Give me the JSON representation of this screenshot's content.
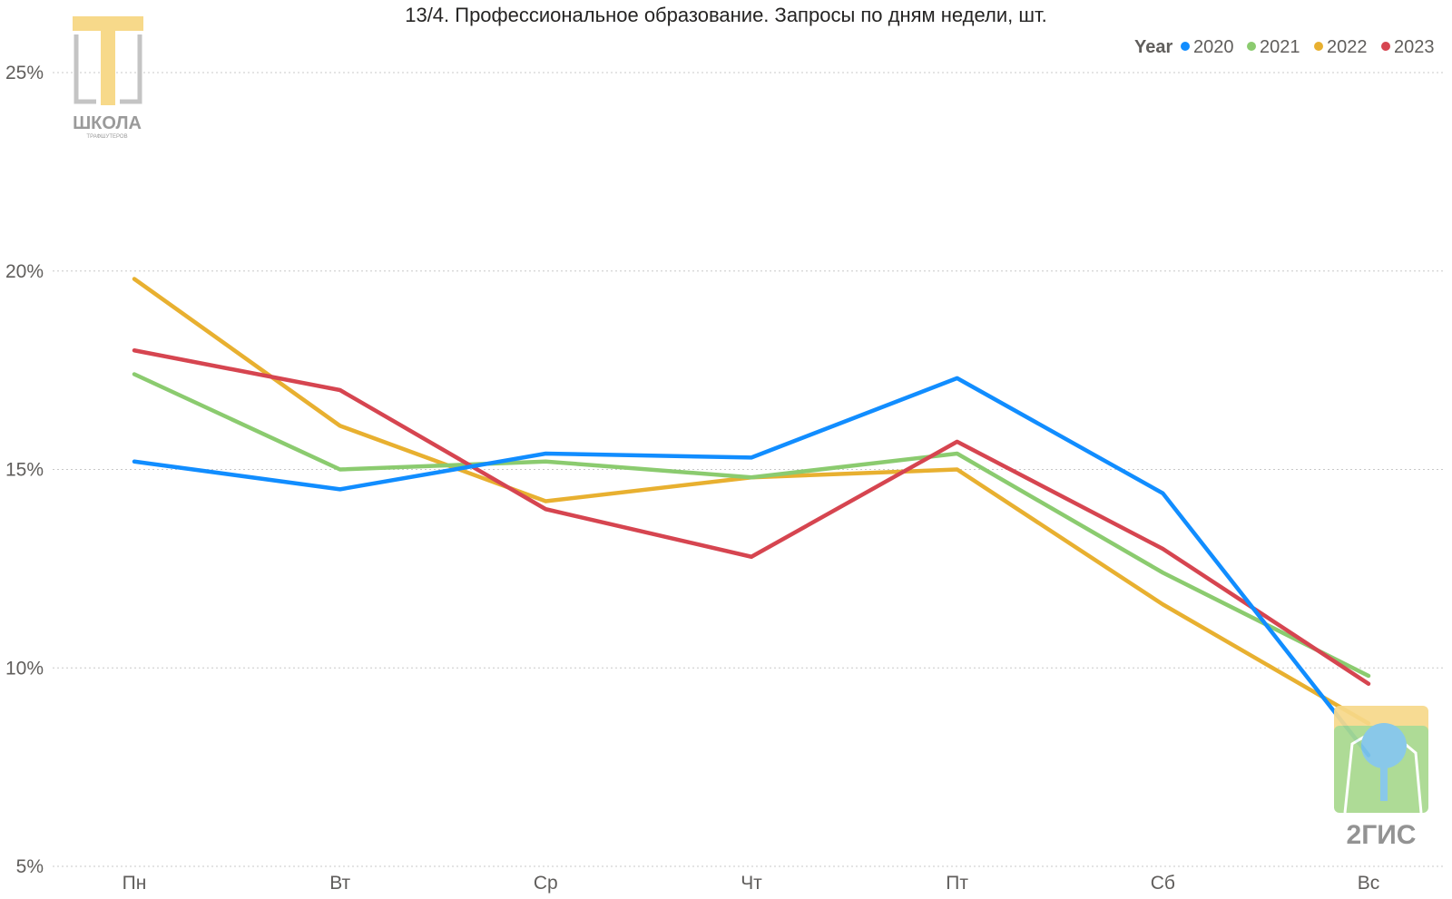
{
  "chart_data": {
    "type": "line",
    "title": "13/4. Профессиональное образование. Запросы по дням недели, шт.",
    "legend_title": "Year",
    "legend_position": "top-right",
    "categories": [
      "Пн",
      "Вт",
      "Ср",
      "Чт",
      "Пт",
      "Сб",
      "Вс"
    ],
    "ylim": [
      5,
      26
    ],
    "yticks": [
      5,
      10,
      15,
      20,
      25
    ],
    "ytick_labels": [
      "5%",
      "10%",
      "15%",
      "20%",
      "25%"
    ],
    "grid": true,
    "series": [
      {
        "name": "2020",
        "color": "#118DFF",
        "values": [
          15.2,
          14.5,
          15.4,
          15.3,
          17.3,
          14.4,
          7.8
        ]
      },
      {
        "name": "2021",
        "color": "#8BCB6F",
        "values": [
          17.4,
          15.0,
          15.2,
          14.8,
          15.4,
          12.4,
          9.8
        ]
      },
      {
        "name": "2022",
        "color": "#E8B030",
        "values": [
          19.8,
          16.1,
          14.2,
          14.8,
          15.0,
          11.6,
          8.6
        ]
      },
      {
        "name": "2023",
        "color": "#D64550",
        "values": [
          18.0,
          17.0,
          14.0,
          12.8,
          15.7,
          13.0,
          9.6
        ]
      }
    ]
  },
  "watermarks": {
    "school_logo": {
      "text": "ШКОЛА",
      "subtext": "ТРАФШУТЕРОВ",
      "color": "#F7D98A"
    },
    "gis_logo": {
      "text": "2ГИС",
      "green": "#A8D88E",
      "yellow": "#F7D98A",
      "blue": "#7FC4E8"
    }
  }
}
